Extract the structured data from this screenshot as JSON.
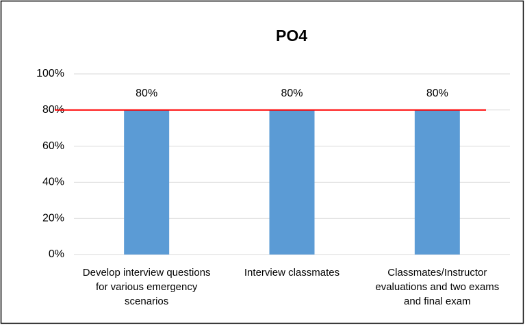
{
  "chart_data": {
    "type": "bar",
    "title": "PO4",
    "categories": [
      "Develop interview questions for various emergency scenarios",
      "Interview classmates",
      "Classmates/Instructor evaluations and two exams and final exam"
    ],
    "values": [
      80,
      80,
      80
    ],
    "value_labels": [
      "80%",
      "80%",
      "80%"
    ],
    "color": "#5b9bd5",
    "ylim": [
      0,
      100
    ],
    "yticks": [
      {
        "value": 0,
        "label": "0%"
      },
      {
        "value": 20,
        "label": "20%"
      },
      {
        "value": 40,
        "label": "40%"
      },
      {
        "value": 60,
        "label": "60%"
      },
      {
        "value": 80,
        "label": "80%"
      },
      {
        "value": 100,
        "label": "100%"
      }
    ],
    "grid": true,
    "target_line": {
      "value": 80,
      "color": "#ff0000"
    }
  }
}
